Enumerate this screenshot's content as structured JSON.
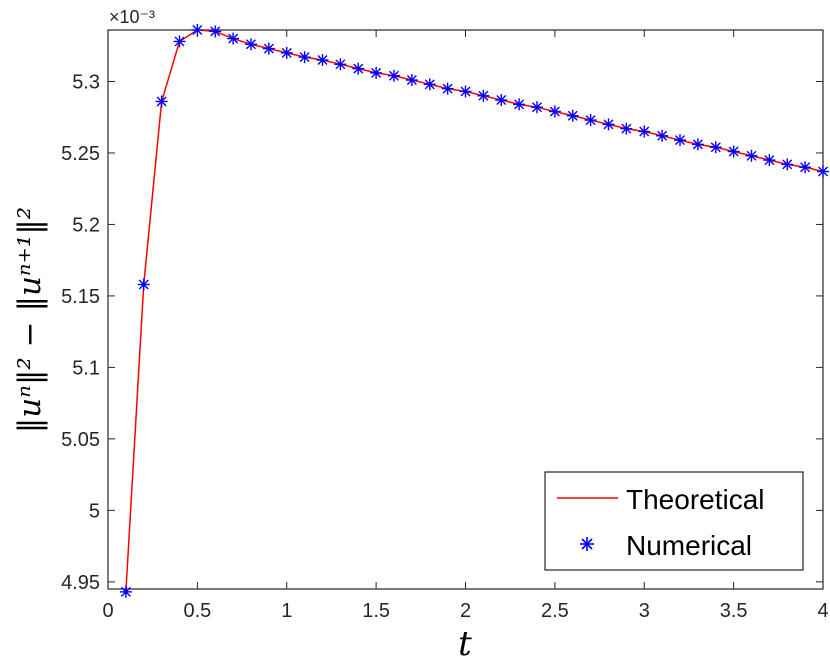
{
  "chart_data": {
    "type": "line",
    "x_label": "t",
    "y_label": "‖uⁿ‖² − ‖uⁿ⁺¹‖²",
    "y_exponent": "×10⁻³",
    "xlim": [
      0,
      4
    ],
    "ylim": [
      4.945,
      5.336
    ],
    "x_ticks": [
      0,
      0.5,
      1,
      1.5,
      2,
      2.5,
      3,
      3.5,
      4
    ],
    "x_tick_labels": [
      "0",
      "0.5",
      "1",
      "1.5",
      "2",
      "2.5",
      "3",
      "3.5",
      "4"
    ],
    "y_ticks": [
      4.95,
      5.0,
      5.05,
      5.1,
      5.15,
      5.2,
      5.25,
      5.3
    ],
    "y_tick_labels": [
      "4.95",
      "5",
      "5.05",
      "5.1",
      "5.15",
      "5.2",
      "5.25",
      "5.3"
    ],
    "grid": false,
    "legend": {
      "position": "bottom-right",
      "items": [
        "Theoretical",
        "Numerical"
      ]
    },
    "series": [
      {
        "name": "Theoretical",
        "color": "#ff0000",
        "style": "line",
        "x": [
          0.1,
          0.2,
          0.3,
          0.4,
          0.5,
          0.6,
          0.7,
          0.8,
          0.9,
          1.0,
          1.1,
          1.2,
          1.3,
          1.4,
          1.5,
          1.6,
          1.7,
          1.8,
          1.9,
          2.0,
          2.1,
          2.2,
          2.3,
          2.4,
          2.5,
          2.6,
          2.7,
          2.8,
          2.9,
          3.0,
          3.1,
          3.2,
          3.3,
          3.4,
          3.5,
          3.6,
          3.7,
          3.8,
          3.9,
          4.0
        ],
        "y": [
          4.943,
          5.158,
          5.286,
          5.328,
          5.336,
          5.335,
          5.33,
          5.326,
          5.323,
          5.32,
          5.317,
          5.315,
          5.312,
          5.309,
          5.306,
          5.304,
          5.301,
          5.298,
          5.295,
          5.293,
          5.29,
          5.287,
          5.284,
          5.282,
          5.279,
          5.276,
          5.273,
          5.27,
          5.267,
          5.265,
          5.262,
          5.259,
          5.256,
          5.254,
          5.251,
          5.248,
          5.245,
          5.242,
          5.24,
          5.237
        ]
      },
      {
        "name": "Numerical",
        "color": "#0000ff",
        "style": "marker-asterisk",
        "x": [
          0.1,
          0.2,
          0.3,
          0.4,
          0.5,
          0.6,
          0.7,
          0.8,
          0.9,
          1.0,
          1.1,
          1.2,
          1.3,
          1.4,
          1.5,
          1.6,
          1.7,
          1.8,
          1.9,
          2.0,
          2.1,
          2.2,
          2.3,
          2.4,
          2.5,
          2.6,
          2.7,
          2.8,
          2.9,
          3.0,
          3.1,
          3.2,
          3.3,
          3.4,
          3.5,
          3.6,
          3.7,
          3.8,
          3.9,
          4.0
        ],
        "y": [
          4.943,
          5.158,
          5.286,
          5.328,
          5.336,
          5.335,
          5.33,
          5.326,
          5.323,
          5.32,
          5.317,
          5.315,
          5.312,
          5.309,
          5.306,
          5.304,
          5.301,
          5.298,
          5.295,
          5.293,
          5.29,
          5.287,
          5.284,
          5.282,
          5.279,
          5.276,
          5.273,
          5.27,
          5.267,
          5.265,
          5.262,
          5.259,
          5.256,
          5.254,
          5.251,
          5.248,
          5.245,
          5.242,
          5.24,
          5.237
        ]
      }
    ]
  }
}
